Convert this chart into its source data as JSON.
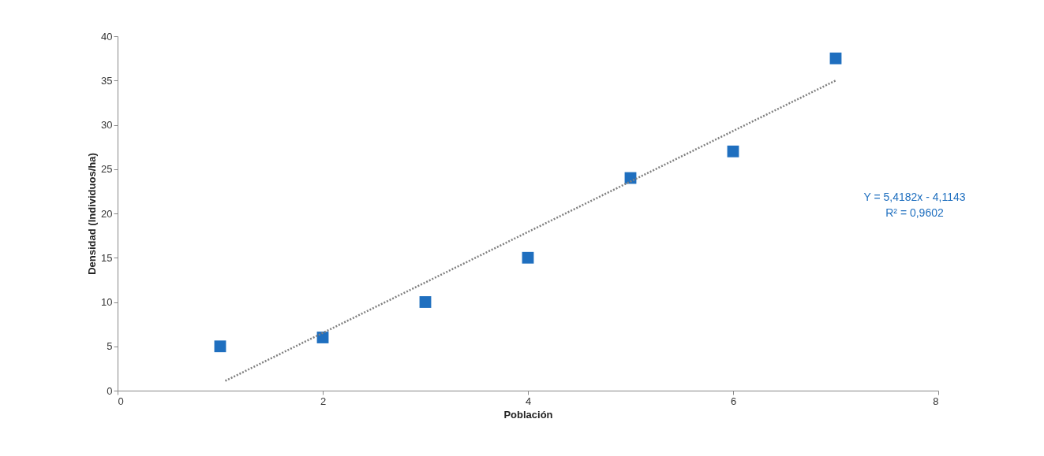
{
  "chart_data": {
    "type": "scatter",
    "xlabel": "Población",
    "ylabel": "Densidad (Individuos/ha)",
    "xlim": [
      0,
      8
    ],
    "xticks": [
      0,
      2,
      4,
      6,
      8
    ],
    "ylim": [
      0,
      40
    ],
    "yticks": [
      0,
      5,
      10,
      15,
      20,
      25,
      30,
      35,
      40
    ],
    "grid": false,
    "series": [
      {
        "color": "#1f6fbf",
        "marker": "square",
        "x": [
          1,
          2,
          3,
          4,
          5,
          6,
          7
        ],
        "values": [
          5,
          6,
          10,
          15,
          24,
          27,
          37.5
        ]
      },
      {
        "type": "line",
        "color": "#808080",
        "line_style": "dotted",
        "x": [
          1.05,
          7
        ],
        "values": [
          1.1,
          35
        ]
      }
    ],
    "annotations": [
      "Y = 5,4182x - 4,1143",
      "R² = 0,9602"
    ]
  }
}
